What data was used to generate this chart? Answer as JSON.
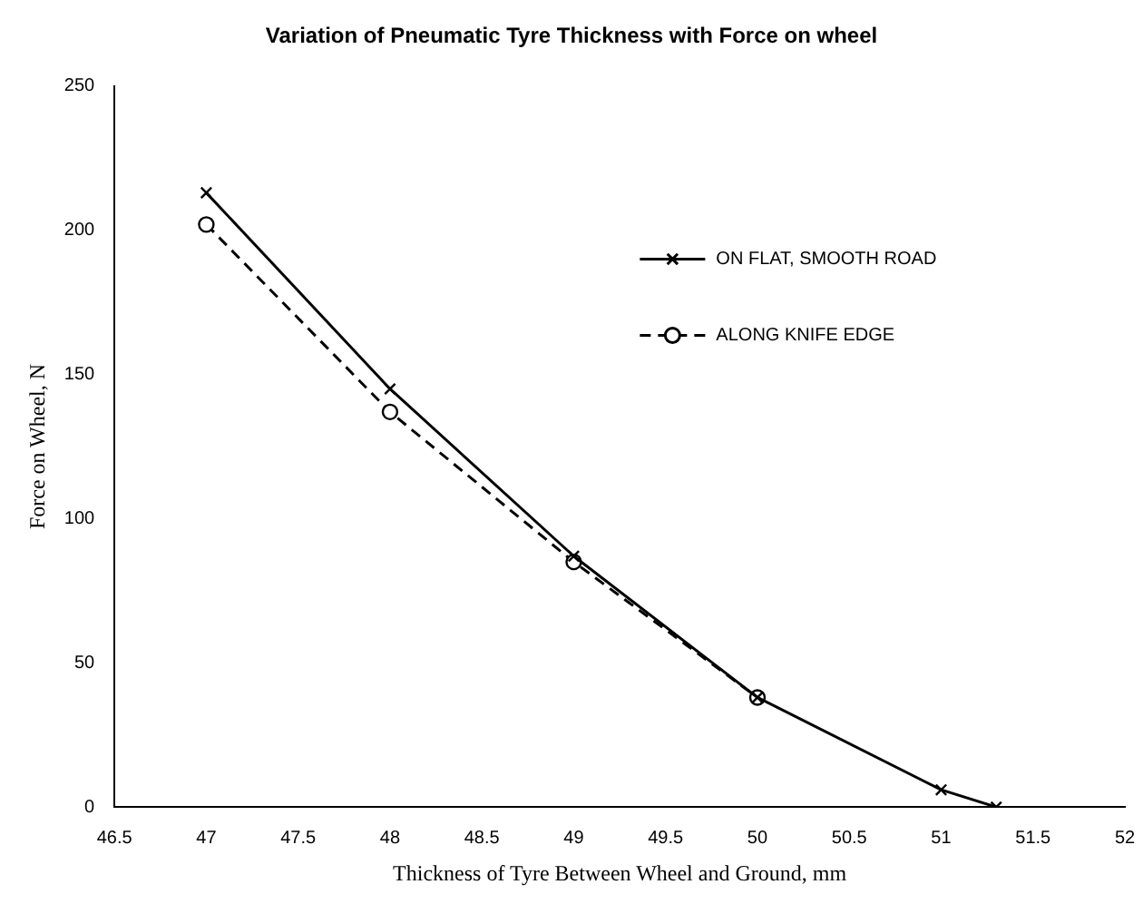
{
  "chart_data": {
    "type": "line",
    "title": "Variation of Pneumatic Tyre Thickness with Force on wheel",
    "xlabel": "Thickness of Tyre Between Wheel and Ground, mm",
    "ylabel": "Force on Wheel, N",
    "xlim": [
      46.5,
      52
    ],
    "xticks": [
      46.5,
      47,
      47.5,
      48,
      48.5,
      49,
      49.5,
      50,
      50.5,
      51,
      51.5,
      52
    ],
    "ylim": [
      0,
      250
    ],
    "yticks": [
      0,
      50,
      100,
      150,
      200,
      250
    ],
    "grid": false,
    "legend": "right",
    "series": [
      {
        "name": "ON FLAT, SMOOTH ROAD",
        "color": "#000000",
        "marker": "cross",
        "line_style": "solid",
        "x": [
          47,
          48,
          49,
          50,
          51,
          51.3
        ],
        "values": [
          213,
          145,
          87,
          38,
          6,
          0
        ]
      },
      {
        "name": "ALONG KNIFE EDGE",
        "color": "#000000",
        "marker": "circle",
        "line_style": "dashed",
        "x": [
          47,
          48,
          49,
          50
        ],
        "values": [
          202,
          137,
          85,
          38
        ]
      }
    ]
  }
}
